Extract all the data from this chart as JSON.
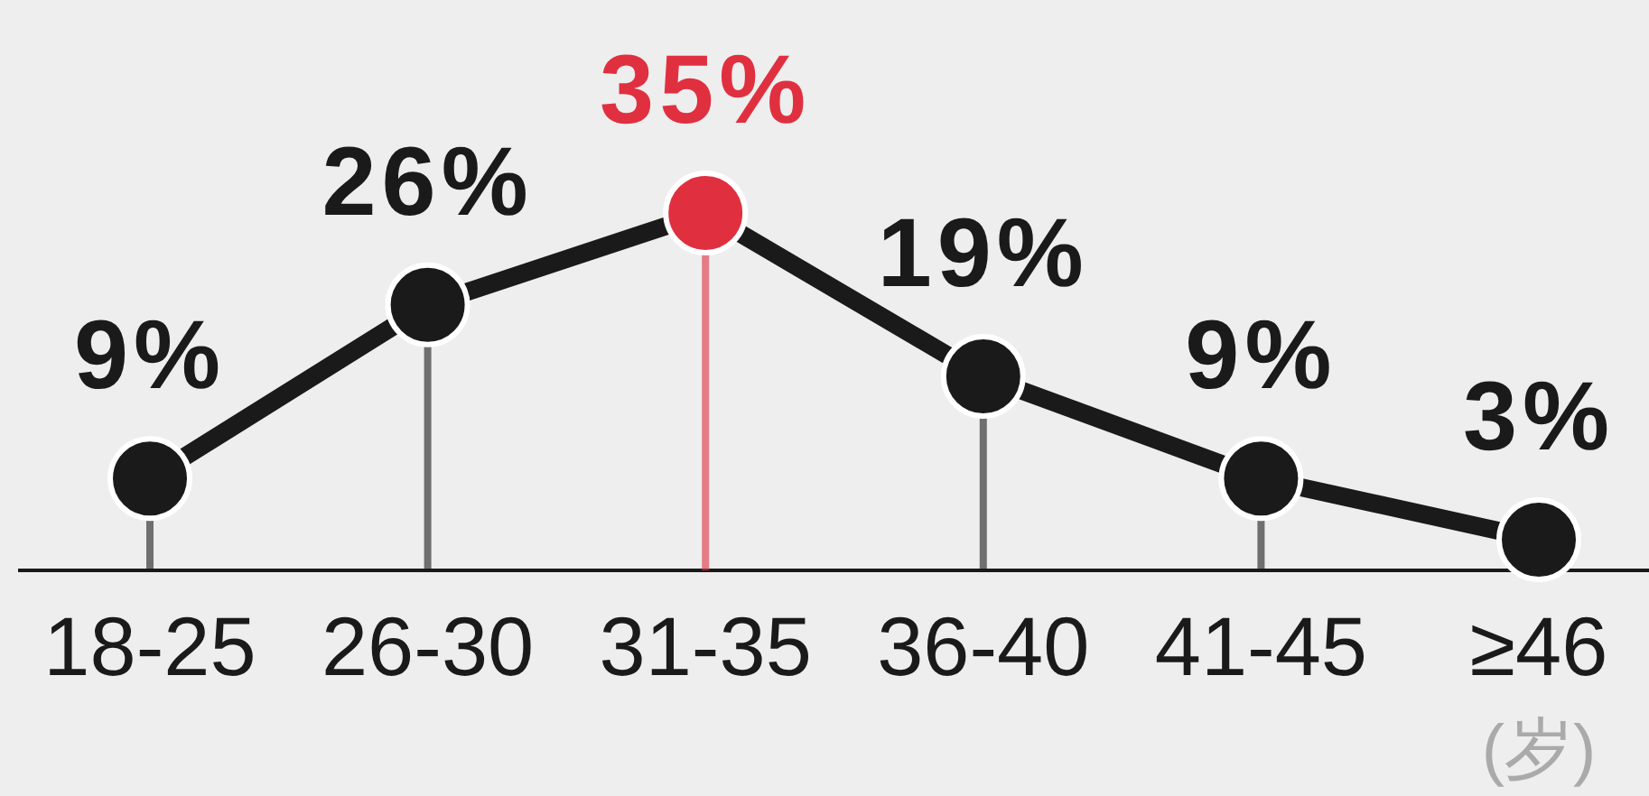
{
  "chart_data": {
    "type": "lollipop",
    "line_style": "solid",
    "xlabel": "(岁)",
    "categories": [
      "18-25",
      "26-30",
      "31-35",
      "36-40",
      "41-45",
      "≥46"
    ],
    "series": [
      {
        "color": "#1a1a1a",
        "colors": [
          "#1a1a1a",
          "#1a1a1a",
          "#e03040",
          "#1a1a1a",
          "#1a1a1a",
          "#1a1a1a"
        ],
        "values": [
          9,
          26,
          35,
          19,
          9,
          3
        ],
        "value_labels": [
          "9%",
          "26%",
          "35%",
          "19%",
          "9%",
          "3%"
        ]
      }
    ],
    "marker": "circle"
  }
}
